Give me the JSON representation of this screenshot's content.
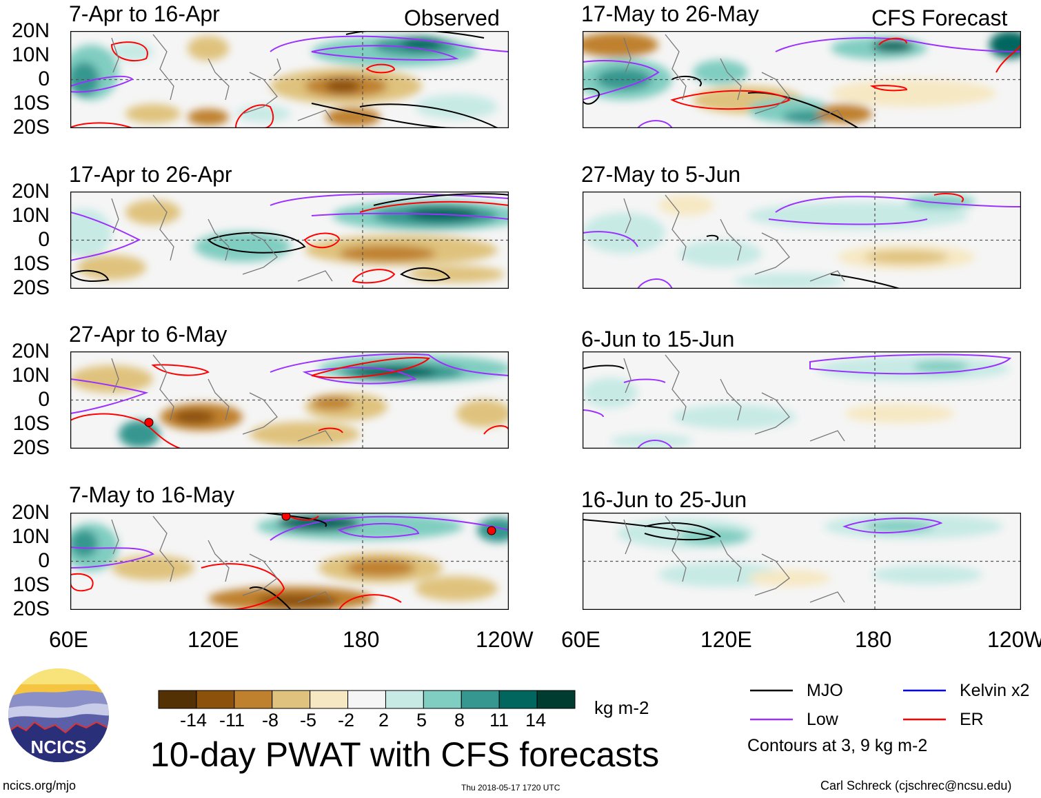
{
  "panels": {
    "p1": {
      "title": "7-Apr to 16-Apr",
      "tag": "Observed"
    },
    "p2": {
      "title": "17-Apr to 26-Apr"
    },
    "p3": {
      "title": "27-Apr to 6-May"
    },
    "p4": {
      "title": "7-May to 16-May"
    },
    "p5": {
      "title": "17-May to 26-May",
      "tag": "CFS Forecast"
    },
    "p6": {
      "title": "27-May to 5-Jun"
    },
    "p7": {
      "title": "6-Jun to 15-Jun"
    },
    "p8": {
      "title": "16-Jun to 25-Jun"
    }
  },
  "latitudes": [
    "20N",
    "10N",
    "0",
    "10S",
    "20S"
  ],
  "longitudes": [
    "60E",
    "120E",
    "180",
    "120W"
  ],
  "colorbar": {
    "labels": [
      "-14",
      "-11",
      "-8",
      "-5",
      "-2",
      "2",
      "5",
      "8",
      "11",
      "14"
    ],
    "unit": "kg m-2",
    "colors": [
      "#543005",
      "#8c510a",
      "#bf812d",
      "#dfc27d",
      "#f6e8c3",
      "#f5f5f5",
      "#c7eae5",
      "#80cdc1",
      "#35978f",
      "#01665e",
      "#003c30"
    ]
  },
  "title": "10-day PWAT with CFS forecasts",
  "legend": {
    "mjo": {
      "label": "MJO",
      "color": "#000000"
    },
    "kelvin": {
      "label": "Kelvin x2",
      "color": "#0000ff"
    },
    "low": {
      "label": "Low",
      "color": "#9b30ff"
    },
    "er": {
      "label": "ER",
      "color": "#ff0000"
    },
    "note": "Contours at 3, 9 kg m-2"
  },
  "logo": {
    "text": "NCICS"
  },
  "footer": {
    "url": "ncics.org/mjo",
    "timestamp": "Thu 2018-05-17 1720 UTC",
    "credit": "Carl Schreck (cjschrec@ncsu.edu)"
  }
}
